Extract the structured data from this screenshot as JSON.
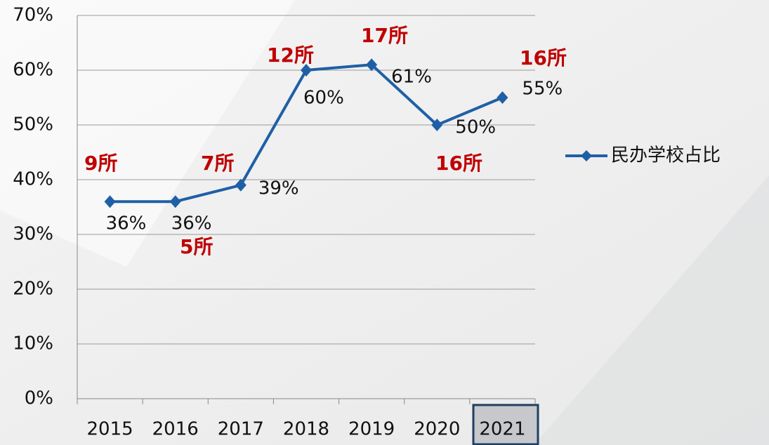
{
  "chart_data": {
    "type": "line",
    "categories": [
      "2015",
      "2016",
      "2017",
      "2018",
      "2019",
      "2020",
      "2021"
    ],
    "series": [
      {
        "name": "民办学校占比",
        "color": "#1f5fa6",
        "values": [
          36,
          36,
          39,
          60,
          61,
          50,
          55
        ],
        "value_labels": [
          "36%",
          "36%",
          "39%",
          "60%",
          "61%",
          "50%",
          "55%"
        ]
      }
    ],
    "ylim": [
      0,
      70
    ],
    "yticks": [
      {
        "value": 0,
        "label": "0%"
      },
      {
        "value": 10,
        "label": "10%"
      },
      {
        "value": 20,
        "label": "20%"
      },
      {
        "value": 30,
        "label": "30%"
      },
      {
        "value": 40,
        "label": "40%"
      },
      {
        "value": 50,
        "label": "50%"
      },
      {
        "value": 60,
        "label": "60%"
      },
      {
        "value": 70,
        "label": "70%"
      }
    ],
    "grid": true,
    "legend": "right",
    "annotations": [
      "9所",
      "5所",
      "7所",
      "12所",
      "17所",
      "16所",
      "16所"
    ]
  }
}
